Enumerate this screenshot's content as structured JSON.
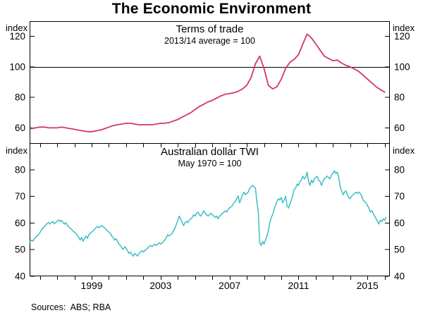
{
  "page": {
    "title": "The Economic Environment",
    "footer": "Sources:  ABS; RBA"
  },
  "x_axis": {
    "range": [
      1995.4,
      2016.3
    ],
    "minor_ticks": {
      "from": 1996,
      "to": 2016,
      "step": 1
    },
    "labels": [
      {
        "value": 1999,
        "text": "1999"
      },
      {
        "value": 2003,
        "text": "2003"
      },
      {
        "value": 2007,
        "text": "2007"
      },
      {
        "value": 2011,
        "text": "2011"
      },
      {
        "value": 2015,
        "text": "2015"
      }
    ]
  },
  "chart_data": [
    {
      "type": "line",
      "panel": "top",
      "title": "Terms of trade",
      "subtitle": "2013/14 average = 100",
      "unit": "index",
      "color": "#d4356b",
      "ylim": [
        50,
        130
      ],
      "yticks": [
        60,
        80,
        100,
        120
      ],
      "reference_line": 100,
      "grid": false,
      "series": {
        "name": "Terms of trade",
        "start": 1995.5,
        "step": 0.25,
        "values": [
          59.5,
          60,
          60.5,
          60.5,
          60,
          60,
          60,
          60.5,
          60,
          59.5,
          59,
          58.5,
          58,
          57.5,
          57.5,
          58,
          58.5,
          59.5,
          60.5,
          61.5,
          62,
          62.5,
          63,
          63,
          62.5,
          62,
          62,
          62,
          62,
          62.5,
          63,
          63,
          63.5,
          64.5,
          65.5,
          67,
          68.5,
          70,
          72,
          74,
          75.5,
          77,
          78,
          79.5,
          81,
          82,
          82.5,
          83,
          84,
          85.5,
          88,
          93,
          102,
          107,
          99,
          88,
          85.5,
          87,
          92,
          99,
          103,
          105,
          108,
          115,
          121.5,
          119,
          115,
          111,
          107,
          105.5,
          104,
          104.5,
          102.5,
          101,
          100,
          98.5,
          97,
          94.5,
          92,
          89.5,
          87,
          85,
          83.5
        ]
      }
    },
    {
      "type": "line",
      "panel": "bottom",
      "title": "Australian dollar TWI",
      "subtitle": "May 1970 = 100",
      "unit": "index",
      "color": "#3bbfc4",
      "ylim": [
        40,
        90
      ],
      "yticks": [
        40,
        50,
        60,
        70,
        80
      ],
      "reference_line": null,
      "grid": false,
      "series": {
        "name": "Australian dollar TWI",
        "start": 1995.4167,
        "step": 0.0833333,
        "values": [
          53,
          53.6,
          53.2,
          54.1,
          54.6,
          55.2,
          55.6,
          56.4,
          57.3,
          58.1,
          58.6,
          59.2,
          59.8,
          60.2,
          59.6,
          60.1,
          60.6,
          59.7,
          60.2,
          60.7,
          61.2,
          60.6,
          61,
          60.2,
          59.6,
          60.1,
          59.2,
          58.6,
          58.1,
          57.6,
          57.1,
          56.6,
          56.1,
          55.4,
          54.6,
          53.6,
          54.6,
          53.1,
          54.1,
          55.1,
          54.2,
          55.6,
          56.1,
          56.6,
          57.1,
          57.7,
          58.2,
          58.7,
          58.2,
          58.7,
          59.1,
          58.6,
          58.1,
          57.6,
          57.1,
          56.6,
          56.1,
          55.1,
          54.6,
          53.6,
          54.1,
          53.1,
          52.1,
          51.6,
          50.6,
          50.1,
          51.1,
          50.6,
          49.6,
          48.6,
          49.1,
          48.1,
          47.6,
          48.6,
          48.1,
          47.6,
          48.6,
          49.1,
          49.6,
          49.1,
          49.6,
          50.1,
          50.6,
          51.1,
          51.6,
          51.1,
          51.6,
          52.1,
          51.6,
          52.1,
          52.6,
          52.1,
          52.6,
          53.1,
          53.6,
          54.6,
          55.6,
          55.1,
          55.6,
          56.1,
          57.1,
          58.1,
          59.6,
          61.1,
          62.6,
          61.6,
          60.1,
          59.1,
          60.1,
          60.6,
          60.1,
          61.1,
          61.6,
          62.1,
          63.1,
          62.6,
          63.6,
          64.1,
          63.1,
          62.6,
          63.6,
          64.6,
          63.6,
          63.1,
          62.6,
          63.1,
          63.6,
          63.1,
          62.6,
          62.1,
          62.6,
          61.6,
          62.6,
          63.1,
          63.6,
          64.1,
          64.6,
          64.1,
          65.1,
          65.6,
          66.1,
          66.6,
          67.6,
          68.1,
          69.1,
          70.1,
          67.6,
          69.1,
          70.6,
          71.6,
          70.6,
          71.1,
          71.6,
          73.1,
          73.6,
          74.1,
          73.6,
          73.1,
          68.1,
          64.1,
          52.6,
          51.6,
          53.1,
          52.1,
          53.6,
          55.1,
          57.1,
          60.1,
          62.1,
          63.1,
          65.1,
          66.6,
          68.1,
          69.1,
          68.6,
          69.6,
          67.6,
          68.6,
          70.1,
          66.6,
          65.6,
          67.1,
          68.6,
          70.6,
          72.6,
          73.1,
          74.6,
          74.1,
          75.6,
          76.1,
          77.6,
          76.6,
          77.1,
          79.1,
          75.6,
          74.1,
          76.1,
          75.1,
          76.6,
          77.1,
          77.6,
          76.1,
          75.6,
          74.1,
          75.6,
          76.6,
          77.1,
          77.6,
          77.1,
          76.6,
          78.1,
          78.6,
          79.6,
          78.6,
          79.1,
          77.1,
          73.6,
          72.1,
          70.6,
          71.6,
          72.1,
          70.6,
          69.6,
          69.1,
          70.1,
          70.6,
          71.1,
          71.6,
          71.1,
          71.6,
          71.1,
          70.1,
          68.6,
          68.1,
          67.6,
          66.6,
          65.6,
          64.1,
          64.6,
          63.6,
          62.6,
          61.6,
          60.6,
          59.6,
          61.1,
          60.6,
          61.6,
          61.1,
          62.1
        ]
      }
    }
  ]
}
